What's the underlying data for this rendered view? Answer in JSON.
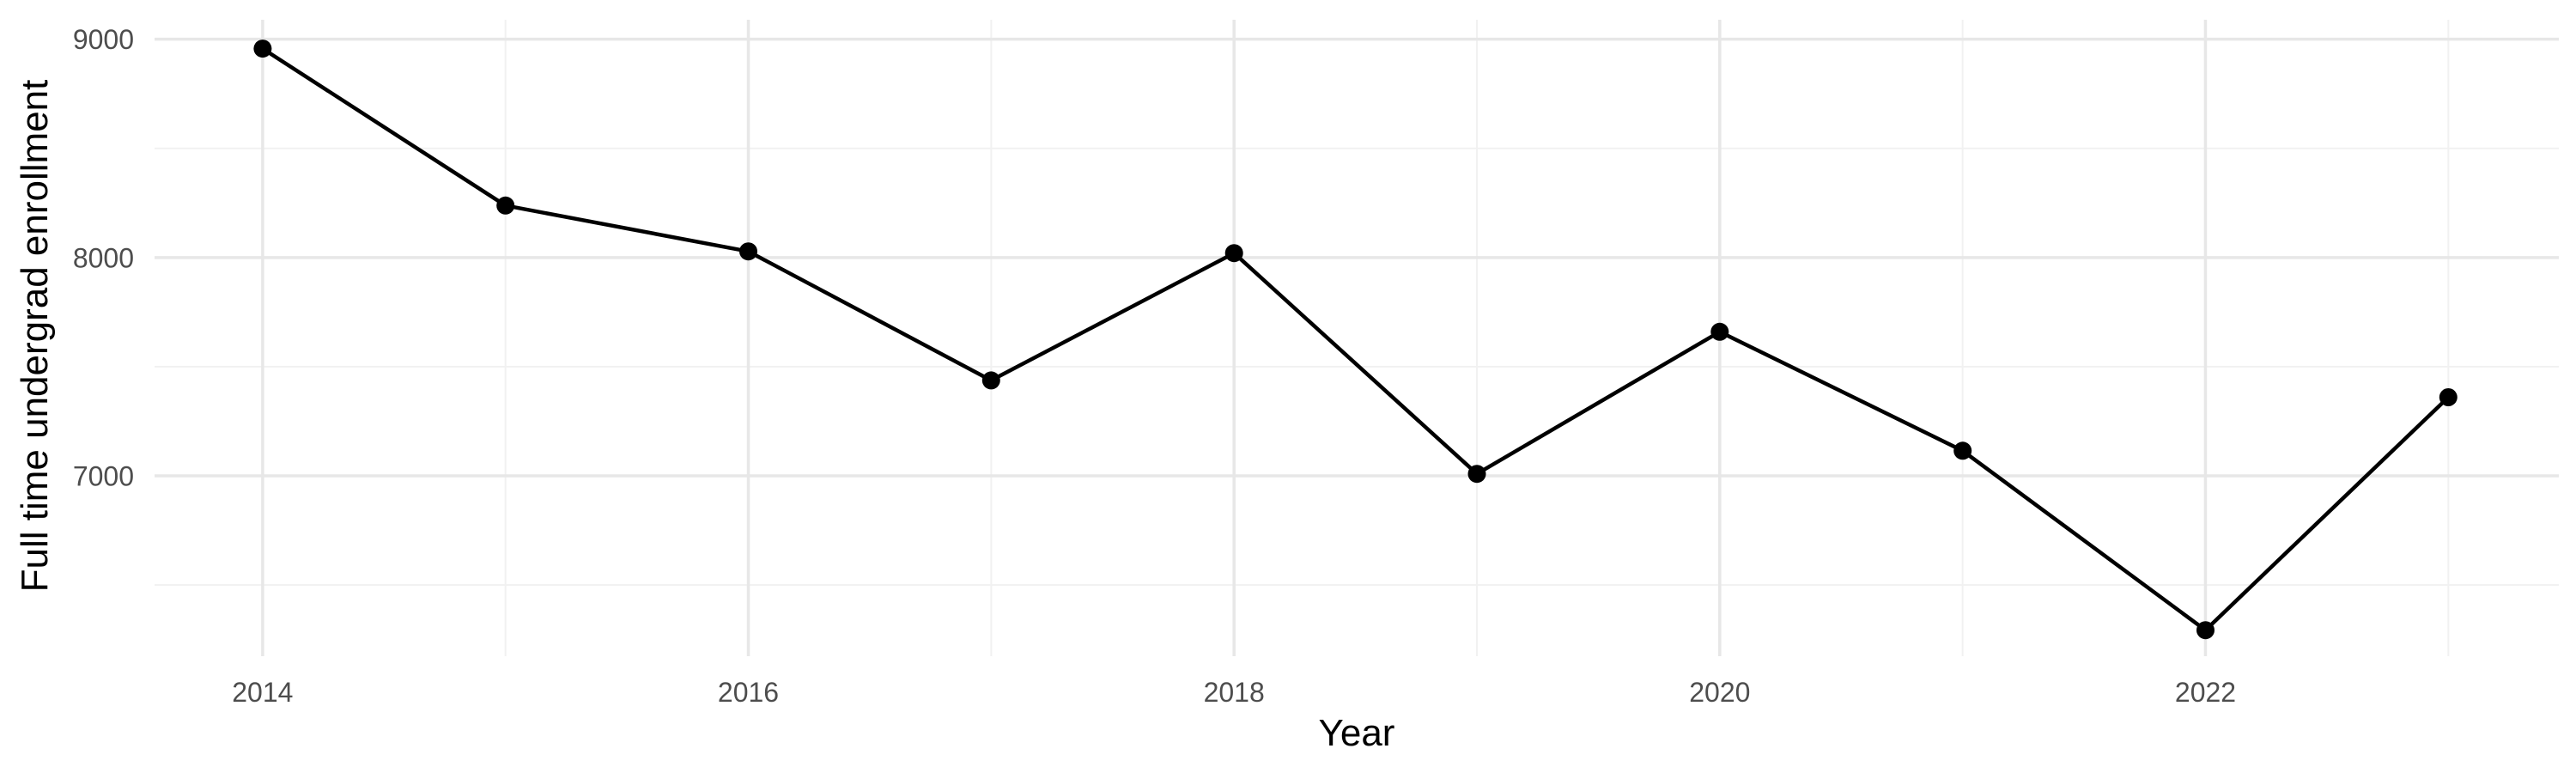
{
  "chart_data": {
    "type": "line",
    "title": "",
    "xlabel": "Year",
    "ylabel": "Full time undergrad enrollment",
    "x": [
      2014,
      2015,
      2016,
      2017,
      2018,
      2019,
      2020,
      2021,
      2022,
      2023
    ],
    "series": [
      {
        "name": "Full time undergrad enrollment",
        "values": [
          8957,
          8238,
          8028,
          7437,
          8020,
          7009,
          7660,
          7115,
          6293,
          7360
        ]
      }
    ],
    "xlim": [
      2013.555,
      2023.455
    ],
    "ylim": [
      6174,
      9089
    ],
    "x_major_ticks": [
      2014,
      2016,
      2018,
      2020,
      2022
    ],
    "x_minor_ticks": [
      2015,
      2017,
      2019,
      2021,
      2023
    ],
    "y_major_ticks": [
      9000,
      8000,
      7000
    ],
    "y_minor_ticks": [
      8500,
      7500,
      6500
    ],
    "grid": true,
    "legend": "none",
    "styles": {
      "background_color": "#ffffff",
      "line_color": "#000000",
      "point_color": "#000000",
      "grid_major_color": "#e7e7e7",
      "grid_minor_color": "#f1f1f1",
      "axis_text_color": "#4d4d4d",
      "axis_title_color": "#000000"
    }
  }
}
